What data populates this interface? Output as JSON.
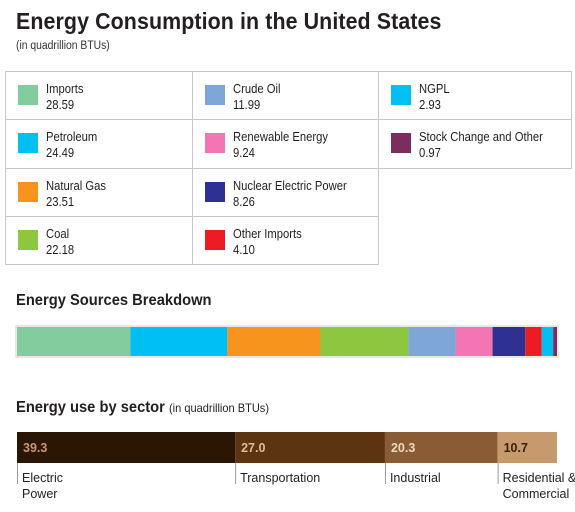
{
  "title": "Energy Consumption in the United States",
  "subtitle": "(in quadrillion BTUs)",
  "chart_data": [
    {
      "type": "table",
      "entries": [
        {
          "name": "Imports",
          "value": "28.59",
          "color": "#83cc9e"
        },
        {
          "name": "Petroleum",
          "value": "24.49",
          "color": "#00bff3"
        },
        {
          "name": "Natural Gas",
          "value": "23.51",
          "color": "#f7941d"
        },
        {
          "name": "Coal",
          "value": "22.18",
          "color": "#8dc63f"
        },
        {
          "name": "Crude Oil",
          "value": "11.99",
          "color": "#7ea7d8"
        },
        {
          "name": "Renewable Energy",
          "value": "9.24",
          "color": "#f375b3"
        },
        {
          "name": "Nuclear Electric Power",
          "value": "8.26",
          "color": "#2e3192"
        },
        {
          "name": "Other Imports",
          "value": "4.10",
          "color": "#ed1c24"
        },
        {
          "name": "NGPL",
          "value": "2.93",
          "color": "#00bff3"
        },
        {
          "name": "Stock Change and Other",
          "value": "0.97",
          "color": "#7b2e5e"
        }
      ]
    },
    {
      "type": "bar",
      "title": "Energy Sources Breakdown",
      "stacked": true,
      "orientation": "horizontal",
      "segments": [
        {
          "name": "Imports",
          "value": 28.59,
          "color": "#83cc9e"
        },
        {
          "name": "Petroleum",
          "value": 24.49,
          "color": "#00bff3"
        },
        {
          "name": "Natural Gas",
          "value": 23.51,
          "color": "#f7941d"
        },
        {
          "name": "Coal",
          "value": 22.18,
          "color": "#8dc63f"
        },
        {
          "name": "Crude Oil",
          "value": 11.99,
          "color": "#7ea7d8"
        },
        {
          "name": "Renewable Energy",
          "value": 9.24,
          "color": "#f375b3"
        },
        {
          "name": "Nuclear Electric Power",
          "value": 8.26,
          "color": "#2e3192"
        },
        {
          "name": "Other Imports",
          "value": 4.1,
          "color": "#ed1c24"
        },
        {
          "name": "NGPL",
          "value": 2.93,
          "color": "#00bff3"
        },
        {
          "name": "Stock Change and Other",
          "value": 0.97,
          "color": "#7b2e5e"
        }
      ]
    },
    {
      "type": "bar",
      "title": "Energy use by sector",
      "title_note": "(in quadrillion BTUs)",
      "stacked": true,
      "orientation": "horizontal",
      "segments": [
        {
          "name_lines": [
            "Electric",
            "Power"
          ],
          "value": 39.3,
          "label": "39.3",
          "color": "#2b1503",
          "label_color": "#c99a6a"
        },
        {
          "name_lines": [
            "Transportation"
          ],
          "value": 27.0,
          "label": "27.0",
          "color": "#5c3412",
          "label_color": "#e0bd96"
        },
        {
          "name_lines": [
            "Industrial"
          ],
          "value": 20.3,
          "label": "20.3",
          "color": "#8a5c36",
          "label_color": "#f0d8bd"
        },
        {
          "name_lines": [
            "Residential &",
            "Commercial"
          ],
          "value": 10.7,
          "label": "10.7",
          "color": "#c69a6d",
          "label_color": "#3b200b"
        }
      ]
    }
  ]
}
